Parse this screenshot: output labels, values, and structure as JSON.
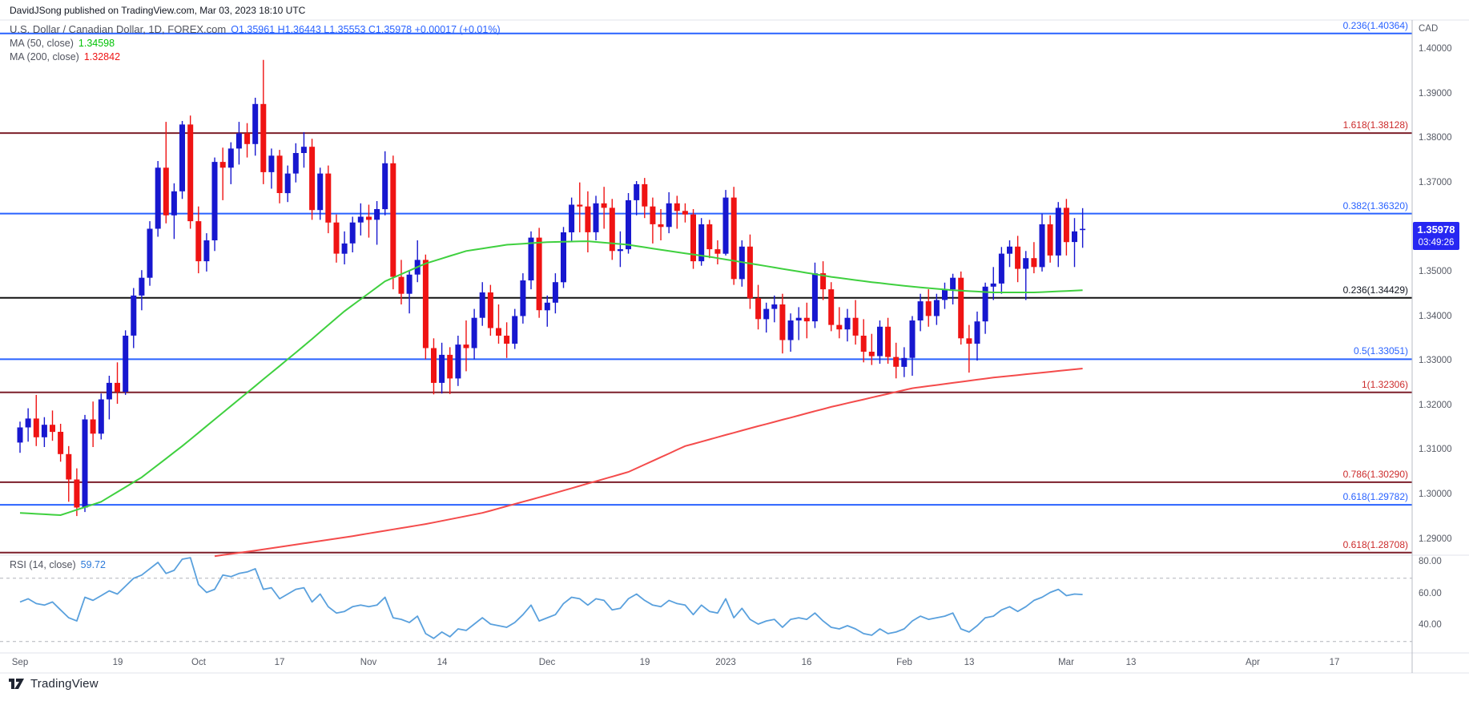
{
  "header": {
    "attribution": "DavidJSong published on TradingView.com, Mar 03, 2023 18:10 UTC"
  },
  "legend": {
    "symbol": "U.S. Dollar / Canadian Dollar, 1D, FOREX.com",
    "ohlc": "O1.35961  H1.36443  L1.35553  C1.35978  +0.00017 (+0.01%)",
    "ma50_label": "MA (50, close)",
    "ma50_value": "1.34598",
    "ma200_label": "MA (200, close)",
    "ma200_value": "1.32842",
    "rsi_label": "RSI (14, close)",
    "rsi_value": "59.72"
  },
  "price_tag": {
    "price": "1.35978",
    "countdown": "03:49:26"
  },
  "axis": {
    "currency_label": "CAD",
    "price_ticks": [
      "1.40000",
      "1.39000",
      "1.38000",
      "1.37000",
      "1.35000",
      "1.34000",
      "1.33000",
      "1.32000",
      "1.31000",
      "1.30000",
      "1.29000"
    ],
    "rsi_ticks": [
      "80.00",
      "60.00",
      "40.00"
    ],
    "date_ticks": [
      {
        "label": "Sep",
        "index": 0
      },
      {
        "label": "19",
        "index": 12
      },
      {
        "label": "Oct",
        "index": 22
      },
      {
        "label": "17",
        "index": 32
      },
      {
        "label": "Nov",
        "index": 43
      },
      {
        "label": "14",
        "index": 52
      },
      {
        "label": "Dec",
        "index": 65
      },
      {
        "label": "19",
        "index": 77
      },
      {
        "label": "2023",
        "index": 87
      },
      {
        "label": "16",
        "index": 97
      },
      {
        "label": "Feb",
        "index": 109
      },
      {
        "label": "13",
        "index": 117
      },
      {
        "label": "Mar",
        "index": 129
      },
      {
        "label": "13",
        "index": 137
      },
      {
        "label": "Apr",
        "index": 152
      },
      {
        "label": "17",
        "index": 162
      }
    ]
  },
  "levels": [
    {
      "label": "0.236(1.40364)",
      "price": 1.40364,
      "color": "blue"
    },
    {
      "label": "1.618(1.38128)",
      "price": 1.38128,
      "color": "maroon"
    },
    {
      "label": "0.382(1.36320)",
      "price": 1.3632,
      "color": "blue"
    },
    {
      "label": "0.236(1.34429)",
      "price": 1.34429,
      "color": "black"
    },
    {
      "label": "0.5(1.33051)",
      "price": 1.33051,
      "color": "blue"
    },
    {
      "label": "1(1.32306)",
      "price": 1.32306,
      "color": "maroon"
    },
    {
      "label": "0.786(1.30290)",
      "price": 1.3029,
      "color": "maroon"
    },
    {
      "label": "0.618(1.29782)",
      "price": 1.29782,
      "color": "blue"
    },
    {
      "label": "0.618(1.28708)",
      "price": 1.28708,
      "color": "maroon"
    }
  ],
  "colors": {
    "up_candle": "#1717cf",
    "down_candle": "#ef1313",
    "ma50": "#3fd03f",
    "ma200": "#f44b4b",
    "rsi_line": "#59a0dd",
    "rsi_dash": "#b0b3ba",
    "palette": {
      "blue": {
        "line": "#2962ff",
        "label": "#2962ff"
      },
      "maroon": {
        "line": "#7c1f2a",
        "label": "#cc2b2b"
      },
      "black": {
        "line": "#111111",
        "label": "#131722"
      }
    },
    "pane_border": "#e0e3eb",
    "axis_border": "#b9bcc5",
    "tag_bg": "#2727f2"
  },
  "footer": {
    "brand": "TradingView"
  },
  "chart_data": {
    "type": "candlestick",
    "symbol": "USD/CAD",
    "timeframe": "1D",
    "source": "FOREX.com",
    "ylim": [
      1.2865,
      1.4067
    ],
    "grid": "horizontal-levels-only",
    "legend_position": "top-left",
    "last_ohlc": {
      "o": 1.35961,
      "h": 1.36443,
      "l": 1.35553,
      "c": 1.35978,
      "change": "+0.00017",
      "change_pct": "+0.01%"
    },
    "candles": [
      [
        1.3118,
        1.3165,
        1.3095,
        1.3152
      ],
      [
        1.3152,
        1.3195,
        1.312,
        1.3172
      ],
      [
        1.3172,
        1.3225,
        1.311,
        1.313
      ],
      [
        1.313,
        1.3175,
        1.3108,
        1.3158
      ],
      [
        1.3158,
        1.319,
        1.3122,
        1.3142
      ],
      [
        1.3142,
        1.316,
        1.3075,
        1.3092
      ],
      [
        1.3092,
        1.311,
        1.2985,
        1.3035
      ],
      [
        1.3035,
        1.306,
        1.2953,
        1.2972
      ],
      [
        1.2972,
        1.318,
        1.2962,
        1.317
      ],
      [
        1.317,
        1.321,
        1.3108,
        1.3138
      ],
      [
        1.3138,
        1.3228,
        1.3125,
        1.3215
      ],
      [
        1.3215,
        1.3268,
        1.317,
        1.3252
      ],
      [
        1.3252,
        1.3298,
        1.3205,
        1.3232
      ],
      [
        1.3232,
        1.337,
        1.3225,
        1.3358
      ],
      [
        1.3358,
        1.3465,
        1.333,
        1.3448
      ],
      [
        1.3448,
        1.3505,
        1.3415,
        1.3488
      ],
      [
        1.3488,
        1.3615,
        1.347,
        1.3598
      ],
      [
        1.3598,
        1.375,
        1.358,
        1.3735
      ],
      [
        1.3735,
        1.3838,
        1.361,
        1.3628
      ],
      [
        1.3628,
        1.37,
        1.3575,
        1.3682
      ],
      [
        1.3682,
        1.384,
        1.3665,
        1.3832
      ],
      [
        1.3832,
        1.3852,
        1.3598,
        1.3615
      ],
      [
        1.3615,
        1.3648,
        1.3498,
        1.3525
      ],
      [
        1.3525,
        1.3588,
        1.3502,
        1.3572
      ],
      [
        1.3572,
        1.3758,
        1.3548,
        1.3748
      ],
      [
        1.3748,
        1.378,
        1.3662,
        1.3735
      ],
      [
        1.3735,
        1.3792,
        1.3698,
        1.3778
      ],
      [
        1.3778,
        1.3838,
        1.3742,
        1.3812
      ],
      [
        1.3812,
        1.3835,
        1.3758,
        1.3788
      ],
      [
        1.3788,
        1.3892,
        1.3762,
        1.3878
      ],
      [
        1.3878,
        1.3977,
        1.3698,
        1.3725
      ],
      [
        1.3725,
        1.3778,
        1.3688,
        1.3762
      ],
      [
        1.3762,
        1.3775,
        1.3655,
        1.3678
      ],
      [
        1.3678,
        1.374,
        1.3658,
        1.3722
      ],
      [
        1.3722,
        1.379,
        1.3702,
        1.3768
      ],
      [
        1.3768,
        1.3815,
        1.3735,
        1.3782
      ],
      [
        1.3782,
        1.38,
        1.3618,
        1.364
      ],
      [
        1.364,
        1.3735,
        1.3618,
        1.3722
      ],
      [
        1.3722,
        1.374,
        1.3588,
        1.3612
      ],
      [
        1.3612,
        1.363,
        1.3522,
        1.3542
      ],
      [
        1.3542,
        1.3592,
        1.3518,
        1.3565
      ],
      [
        1.3565,
        1.3625,
        1.3545,
        1.3612
      ],
      [
        1.3612,
        1.3655,
        1.3583,
        1.3625
      ],
      [
        1.3625,
        1.3652,
        1.3578,
        1.3618
      ],
      [
        1.3618,
        1.366,
        1.3562,
        1.3642
      ],
      [
        1.3642,
        1.3772,
        1.3628,
        1.3745
      ],
      [
        1.3745,
        1.3762,
        1.3462,
        1.349
      ],
      [
        1.349,
        1.3528,
        1.3428,
        1.3452
      ],
      [
        1.3452,
        1.3505,
        1.3408,
        1.3495
      ],
      [
        1.3495,
        1.3572,
        1.3478,
        1.3528
      ],
      [
        1.3528,
        1.354,
        1.3305,
        1.333
      ],
      [
        1.333,
        1.3352,
        1.3226,
        1.3252
      ],
      [
        1.3252,
        1.3342,
        1.3228,
        1.3315
      ],
      [
        1.3315,
        1.3332,
        1.3227,
        1.3262
      ],
      [
        1.3262,
        1.3358,
        1.3245,
        1.3338
      ],
      [
        1.3338,
        1.3392,
        1.3278,
        1.333
      ],
      [
        1.333,
        1.3418,
        1.3305,
        1.3398
      ],
      [
        1.3398,
        1.3478,
        1.338,
        1.3455
      ],
      [
        1.3455,
        1.3472,
        1.3358,
        1.3375
      ],
      [
        1.3375,
        1.3428,
        1.334,
        1.3358
      ],
      [
        1.3358,
        1.3388,
        1.3308,
        1.334
      ],
      [
        1.334,
        1.3418,
        1.3328,
        1.3402
      ],
      [
        1.3402,
        1.3498,
        1.3385,
        1.3482
      ],
      [
        1.3482,
        1.3592,
        1.3462,
        1.3578
      ],
      [
        1.3578,
        1.36,
        1.3398,
        1.3415
      ],
      [
        1.3415,
        1.3448,
        1.3378,
        1.3432
      ],
      [
        1.3432,
        1.3498,
        1.3408,
        1.3478
      ],
      [
        1.3478,
        1.3602,
        1.3465,
        1.359
      ],
      [
        1.359,
        1.3668,
        1.3568,
        1.3652
      ],
      [
        1.3652,
        1.3702,
        1.359,
        1.3648
      ],
      [
        1.3648,
        1.3682,
        1.3545,
        1.359
      ],
      [
        1.359,
        1.3672,
        1.3572,
        1.3655
      ],
      [
        1.3655,
        1.3692,
        1.3598,
        1.3645
      ],
      [
        1.3645,
        1.3665,
        1.3528,
        1.3548
      ],
      [
        1.3548,
        1.3592,
        1.3512,
        1.3552
      ],
      [
        1.3552,
        1.3678,
        1.3542,
        1.3662
      ],
      [
        1.3662,
        1.3705,
        1.3628,
        1.3698
      ],
      [
        1.3698,
        1.3712,
        1.3622,
        1.3648
      ],
      [
        1.3648,
        1.3668,
        1.3565,
        1.3608
      ],
      [
        1.3608,
        1.3642,
        1.3572,
        1.3602
      ],
      [
        1.3602,
        1.368,
        1.3588,
        1.3655
      ],
      [
        1.3655,
        1.3672,
        1.3598,
        1.3638
      ],
      [
        1.3638,
        1.3655,
        1.3612,
        1.363
      ],
      [
        1.363,
        1.3642,
        1.3508,
        1.3525
      ],
      [
        1.3525,
        1.3622,
        1.3515,
        1.3608
      ],
      [
        1.3608,
        1.3618,
        1.3532,
        1.3552
      ],
      [
        1.3552,
        1.3572,
        1.3518,
        1.3542
      ],
      [
        1.3542,
        1.3685,
        1.3538,
        1.3668
      ],
      [
        1.3668,
        1.3692,
        1.3472,
        1.3485
      ],
      [
        1.3485,
        1.3572,
        1.3468,
        1.3558
      ],
      [
        1.3558,
        1.3585,
        1.3418,
        1.3442
      ],
      [
        1.3442,
        1.3472,
        1.3372,
        1.3395
      ],
      [
        1.3395,
        1.3432,
        1.3365,
        1.3418
      ],
      [
        1.3418,
        1.3448,
        1.3388,
        1.3428
      ],
      [
        1.3428,
        1.3452,
        1.3318,
        1.3348
      ],
      [
        1.3348,
        1.3408,
        1.3322,
        1.3392
      ],
      [
        1.3392,
        1.3422,
        1.3348,
        1.3398
      ],
      [
        1.3398,
        1.3432,
        1.3352,
        1.339
      ],
      [
        1.339,
        1.3522,
        1.3375,
        1.3498
      ],
      [
        1.3498,
        1.3525,
        1.3438,
        1.3462
      ],
      [
        1.3462,
        1.3478,
        1.3368,
        1.3382
      ],
      [
        1.3382,
        1.3422,
        1.3352,
        1.3372
      ],
      [
        1.3372,
        1.3418,
        1.3345,
        1.3398
      ],
      [
        1.3398,
        1.3438,
        1.3338,
        1.3358
      ],
      [
        1.3358,
        1.3395,
        1.3298,
        1.3322
      ],
      [
        1.3322,
        1.3362,
        1.3292,
        1.3312
      ],
      [
        1.3312,
        1.3392,
        1.3295,
        1.3378
      ],
      [
        1.3378,
        1.3398,
        1.3295,
        1.331
      ],
      [
        1.331,
        1.3342,
        1.3262,
        1.3288
      ],
      [
        1.3288,
        1.3332,
        1.3265,
        1.3308
      ],
      [
        1.3308,
        1.3402,
        1.3268,
        1.3392
      ],
      [
        1.3392,
        1.3452,
        1.3368,
        1.3435
      ],
      [
        1.3435,
        1.3462,
        1.3378,
        1.3402
      ],
      [
        1.3402,
        1.3452,
        1.3382,
        1.3438
      ],
      [
        1.3438,
        1.3477,
        1.3418,
        1.3462
      ],
      [
        1.3462,
        1.3497,
        1.3428,
        1.3488
      ],
      [
        1.3488,
        1.3502,
        1.3338,
        1.3352
      ],
      [
        1.3352,
        1.3382,
        1.3275,
        1.334
      ],
      [
        1.334,
        1.3412,
        1.3302,
        1.339
      ],
      [
        1.339,
        1.3477,
        1.3362,
        1.3468
      ],
      [
        1.3468,
        1.3512,
        1.3438,
        1.3475
      ],
      [
        1.3475,
        1.3557,
        1.3452,
        1.3542
      ],
      [
        1.3542,
        1.3572,
        1.3512,
        1.3558
      ],
      [
        1.3558,
        1.3582,
        1.3478,
        1.3508
      ],
      [
        1.3508,
        1.3548,
        1.3438,
        1.3532
      ],
      [
        1.3532,
        1.3568,
        1.3498,
        1.3512
      ],
      [
        1.3512,
        1.3632,
        1.3502,
        1.3608
      ],
      [
        1.3608,
        1.3628,
        1.3522,
        1.3538
      ],
      [
        1.3538,
        1.3658,
        1.3512,
        1.3645
      ],
      [
        1.3645,
        1.3665,
        1.3538,
        1.3568
      ],
      [
        1.3568,
        1.3622,
        1.3512,
        1.3592
      ],
      [
        1.35961,
        1.36443,
        1.35553,
        1.35978
      ]
    ],
    "ma50": {
      "period": 50,
      "anchors": [
        [
          0,
          1.296
        ],
        [
          5,
          1.2955
        ],
        [
          10,
          1.2985
        ],
        [
          15,
          1.304
        ],
        [
          20,
          1.311
        ],
        [
          25,
          1.3185
        ],
        [
          30,
          1.326
        ],
        [
          35,
          1.3335
        ],
        [
          40,
          1.3413
        ],
        [
          45,
          1.348
        ],
        [
          50,
          1.352
        ],
        [
          55,
          1.3548
        ],
        [
          60,
          1.3562
        ],
        [
          65,
          1.3568
        ],
        [
          70,
          1.357
        ],
        [
          75,
          1.3562
        ],
        [
          80,
          1.3548
        ],
        [
          85,
          1.3535
        ],
        [
          90,
          1.352
        ],
        [
          95,
          1.3505
        ],
        [
          100,
          1.349
        ],
        [
          105,
          1.3478
        ],
        [
          110,
          1.3468
        ],
        [
          115,
          1.346
        ],
        [
          120,
          1.3455
        ],
        [
          125,
          1.3455
        ],
        [
          131,
          1.346
        ]
      ]
    },
    "ma200": {
      "period": 200,
      "anchors": [
        [
          24,
          1.2863
        ],
        [
          30,
          1.2878
        ],
        [
          40,
          1.2905
        ],
        [
          50,
          1.2935
        ],
        [
          57,
          1.296
        ],
        [
          66,
          1.3005
        ],
        [
          75,
          1.3052
        ],
        [
          82,
          1.311
        ],
        [
          90,
          1.315
        ],
        [
          100,
          1.3198
        ],
        [
          110,
          1.324
        ],
        [
          120,
          1.3264
        ],
        [
          131,
          1.32842
        ]
      ]
    },
    "rsi": {
      "period": 14,
      "levels": [
        70,
        30
      ],
      "ylim": [
        23.5,
        84.6
      ],
      "values": [
        55,
        57,
        54,
        53,
        55,
        50,
        45,
        43,
        58,
        56,
        59,
        62,
        60,
        65,
        70,
        72,
        76,
        80,
        73,
        75,
        82,
        83,
        66,
        61,
        63,
        72,
        71,
        73,
        74,
        76,
        63,
        64,
        57,
        60,
        63,
        64,
        55,
        60,
        52,
        48,
        49,
        52,
        53,
        52,
        53,
        58,
        45,
        44,
        42,
        46,
        35,
        32,
        36,
        33,
        38,
        37,
        41,
        45,
        41,
        40,
        39,
        42,
        47,
        53,
        43,
        45,
        47,
        54,
        58,
        57,
        53,
        57,
        56,
        50,
        51,
        57,
        60,
        56,
        53,
        52,
        56,
        54,
        53,
        47,
        53,
        49,
        48,
        57,
        45,
        51,
        44,
        41,
        43,
        44,
        39,
        44,
        45,
        44,
        48,
        43,
        39,
        38,
        40,
        38,
        35,
        34,
        38,
        35,
        36,
        38,
        43,
        46,
        44,
        45,
        46,
        48,
        38,
        36,
        40,
        45,
        46,
        50,
        52,
        49,
        52,
        56,
        58,
        61,
        63,
        59,
        60,
        59.72
      ]
    }
  }
}
